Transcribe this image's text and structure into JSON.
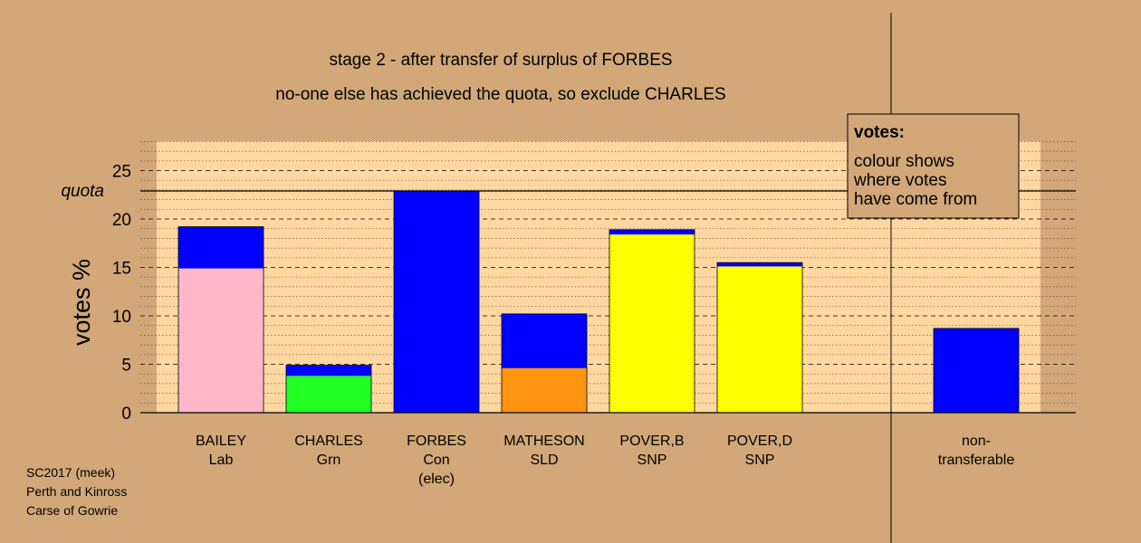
{
  "chart_data": {
    "type": "bar",
    "title": "stage 2 - after transfer of surplus of FORBES",
    "subtitle": "no-one else has achieved the quota, so exclude CHARLES",
    "ylabel": "votes %",
    "ylim": [
      0,
      28
    ],
    "yticks": [
      "0",
      "5",
      "10",
      "15",
      "20",
      "25"
    ],
    "quota": 22.9,
    "quota_label": "quota",
    "grid": "dashed horizontal",
    "categories": [
      {
        "lines": [
          "BAILEY",
          "Lab"
        ],
        "segments": [
          {
            "value": 14.9,
            "color": "#ffb6c8"
          },
          {
            "value": 4.3,
            "color": "#0000ff"
          }
        ]
      },
      {
        "lines": [
          "CHARLES",
          "Grn"
        ],
        "segments": [
          {
            "value": 3.8,
            "color": "#22ff22"
          },
          {
            "value": 1.1,
            "color": "#0000ff"
          }
        ]
      },
      {
        "lines": [
          "FORBES",
          "Con",
          "(elec)"
        ],
        "segments": [
          {
            "value": 22.9,
            "color": "#0000ff"
          }
        ]
      },
      {
        "lines": [
          "MATHESON",
          "SLD"
        ],
        "segments": [
          {
            "value": 4.6,
            "color": "#ff9410"
          },
          {
            "value": 5.6,
            "color": "#0000ff"
          }
        ]
      },
      {
        "lines": [
          "POVER,B",
          "SNP"
        ],
        "segments": [
          {
            "value": 18.4,
            "color": "#ffff00"
          },
          {
            "value": 0.5,
            "color": "#0000ff"
          }
        ]
      },
      {
        "lines": [
          "POVER,D",
          "SNP"
        ],
        "segments": [
          {
            "value": 15.1,
            "color": "#ffff00"
          },
          {
            "value": 0.4,
            "color": "#0000ff"
          }
        ]
      }
    ],
    "nontransferable": {
      "lines": [
        "non-",
        "transferable"
      ],
      "value": 8.7,
      "color": "#0000ff"
    },
    "legend": {
      "position": "top-right",
      "heading": "votes:",
      "lines": [
        "colour shows",
        "where votes",
        "have come from"
      ]
    }
  },
  "footer": [
    "SC2017 (meek)",
    "Perth and Kinross",
    "Carse of Gowrie"
  ],
  "colors": {
    "background": "#d2a878",
    "plot_background": "#ffd7a0",
    "legend_background": "#d2a878"
  }
}
